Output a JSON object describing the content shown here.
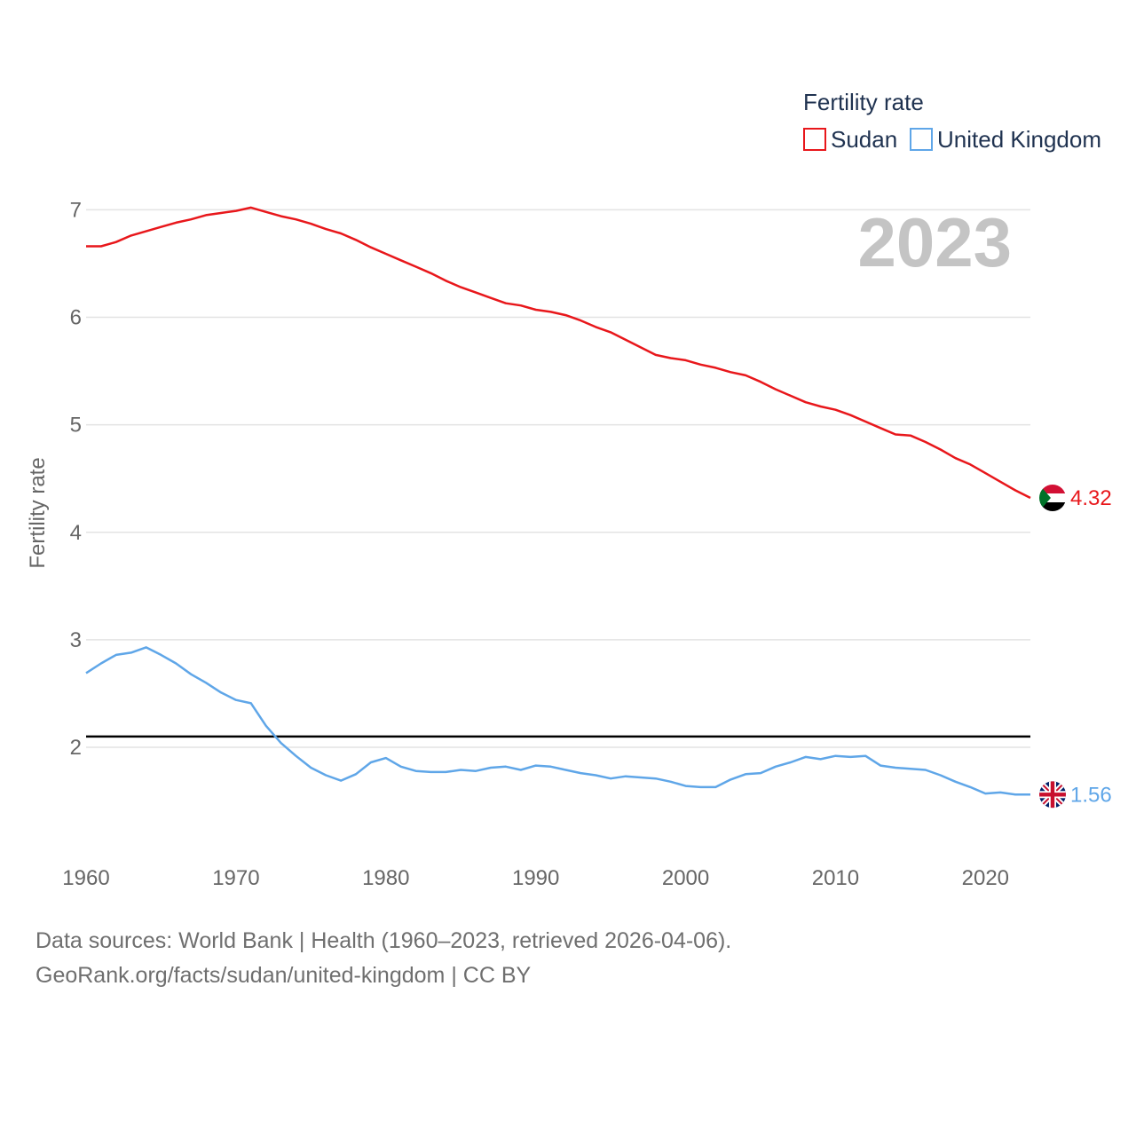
{
  "chart_data": {
    "type": "line",
    "year_display": "2023",
    "ylabel": "Fertility rate",
    "legend_title": "Fertility rate",
    "ylim": [
      1.15,
      7.3
    ],
    "xlim": [
      1960,
      2023
    ],
    "yticks": [
      2,
      3,
      4,
      5,
      6,
      7
    ],
    "xticks": [
      1960,
      1970,
      1980,
      1990,
      2000,
      2010,
      2020
    ],
    "reference_line": 2.1,
    "x": [
      1960,
      1961,
      1962,
      1963,
      1964,
      1965,
      1966,
      1967,
      1968,
      1969,
      1970,
      1971,
      1972,
      1973,
      1974,
      1975,
      1976,
      1977,
      1978,
      1979,
      1980,
      1981,
      1982,
      1983,
      1984,
      1985,
      1986,
      1987,
      1988,
      1989,
      1990,
      1991,
      1992,
      1993,
      1994,
      1995,
      1996,
      1997,
      1998,
      1999,
      2000,
      2001,
      2002,
      2003,
      2004,
      2005,
      2006,
      2007,
      2008,
      2009,
      2010,
      2011,
      2012,
      2013,
      2014,
      2015,
      2016,
      2017,
      2018,
      2019,
      2020,
      2021,
      2022,
      2023
    ],
    "series": [
      {
        "name": "Sudan",
        "color": "#e8171b",
        "end_label": "4.32",
        "values": [
          6.66,
          6.66,
          6.7,
          6.76,
          6.8,
          6.84,
          6.88,
          6.91,
          6.95,
          6.97,
          6.99,
          7.02,
          6.98,
          6.94,
          6.91,
          6.87,
          6.82,
          6.78,
          6.72,
          6.65,
          6.59,
          6.53,
          6.47,
          6.41,
          6.34,
          6.28,
          6.23,
          6.18,
          6.13,
          6.11,
          6.07,
          6.05,
          6.02,
          5.97,
          5.91,
          5.86,
          5.79,
          5.72,
          5.65,
          5.62,
          5.6,
          5.56,
          5.53,
          5.49,
          5.46,
          5.4,
          5.33,
          5.27,
          5.21,
          5.17,
          5.14,
          5.09,
          5.03,
          4.97,
          4.91,
          4.9,
          4.84,
          4.77,
          4.69,
          4.63,
          4.55,
          4.47,
          4.39,
          4.32
        ]
      },
      {
        "name": "United Kingdom",
        "color": "#5fa6e8",
        "end_label": "1.56",
        "values": [
          2.69,
          2.78,
          2.86,
          2.88,
          2.93,
          2.86,
          2.78,
          2.68,
          2.6,
          2.51,
          2.44,
          2.41,
          2.2,
          2.04,
          1.92,
          1.81,
          1.74,
          1.69,
          1.75,
          1.86,
          1.9,
          1.82,
          1.78,
          1.77,
          1.77,
          1.79,
          1.78,
          1.81,
          1.82,
          1.79,
          1.83,
          1.82,
          1.79,
          1.76,
          1.74,
          1.71,
          1.73,
          1.72,
          1.71,
          1.68,
          1.64,
          1.63,
          1.63,
          1.7,
          1.75,
          1.76,
          1.82,
          1.86,
          1.91,
          1.89,
          1.92,
          1.91,
          1.92,
          1.83,
          1.81,
          1.8,
          1.79,
          1.74,
          1.68,
          1.63,
          1.57,
          1.58,
          1.56,
          1.56
        ]
      }
    ]
  },
  "footer": {
    "line1": "Data sources: World Bank | Health (1960–2023, retrieved 2026-04-06).",
    "line2": "GeoRank.org/facts/sudan/united-kingdom | CC BY"
  }
}
